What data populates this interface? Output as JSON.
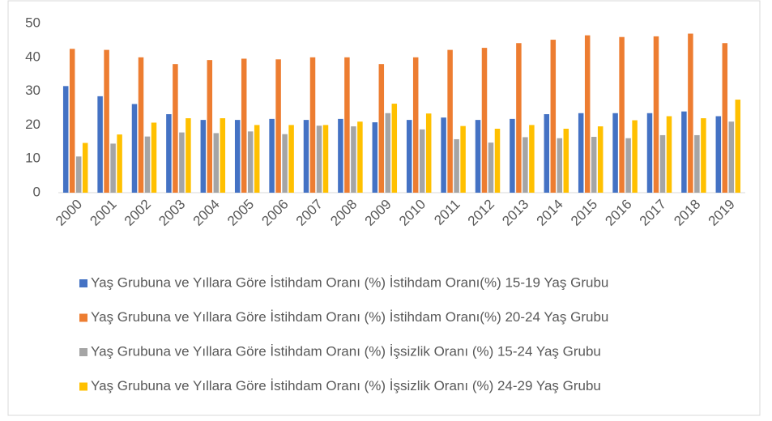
{
  "chart_data": {
    "type": "bar",
    "categories": [
      "2000",
      "2001",
      "2002",
      "2003",
      "2004",
      "2005",
      "2006",
      "2007",
      "2008",
      "2009",
      "2010",
      "2011",
      "2012",
      "2013",
      "2014",
      "2015",
      "2016",
      "2017",
      "2018",
      "2019"
    ],
    "series": [
      {
        "name": "Yaş Grubuna ve Yıllara Göre İstihdam Oranı (%) İstihdam Oranı(%) 15-19 Yaş Grubu",
        "color": "#4472c4",
        "values": [
          31.5,
          28.5,
          26.2,
          23.2,
          21.5,
          21.5,
          21.8,
          21.5,
          21.8,
          20.8,
          21.5,
          22.2,
          21.5,
          21.8,
          23.2,
          23.5,
          23.5,
          23.5,
          24,
          22.6
        ]
      },
      {
        "name": "Yaş Grubuna ve Yıllara Göre İstihdam Oranı (%) İstihdam Oranı(%) 20-24 Yaş Grubu",
        "color": "#ed7d31",
        "values": [
          42.5,
          42.2,
          40,
          38,
          39.2,
          39.6,
          39.4,
          40,
          40,
          38,
          40,
          42.2,
          42.8,
          44.2,
          45.2,
          46.5,
          46,
          46.2,
          47,
          44.2
        ]
      },
      {
        "name": "Yaş Grubuna ve Yıllara Göre İstihdam Oranı (%) İşsizlik Oranı (%) 15-24 Yaş Grubu",
        "color": "#a5a5a5",
        "values": [
          10.7,
          14.5,
          16.6,
          17.8,
          17.6,
          18.1,
          17.3,
          19.8,
          19.6,
          23.5,
          18.7,
          15.8,
          14.8,
          16.4,
          16.1,
          16.5,
          16.1,
          17,
          17,
          21
        ]
      },
      {
        "name": "Yaş Grubuna ve Yıllara Göre İstihdam Oranı (%) İşsizlik Oranı (%) 24-29 Yaş Grubu",
        "color": "#ffc000",
        "values": [
          14.7,
          17.2,
          20.7,
          22,
          22,
          20,
          20,
          20,
          21,
          26.3,
          23.4,
          19.7,
          18.9,
          20,
          18.9,
          19.6,
          21.4,
          22.6,
          22,
          27.5
        ]
      }
    ],
    "ylim": [
      0,
      50
    ],
    "yticks": [
      0,
      10,
      20,
      30,
      40,
      50
    ],
    "grid": false,
    "legend": "bottom"
  }
}
